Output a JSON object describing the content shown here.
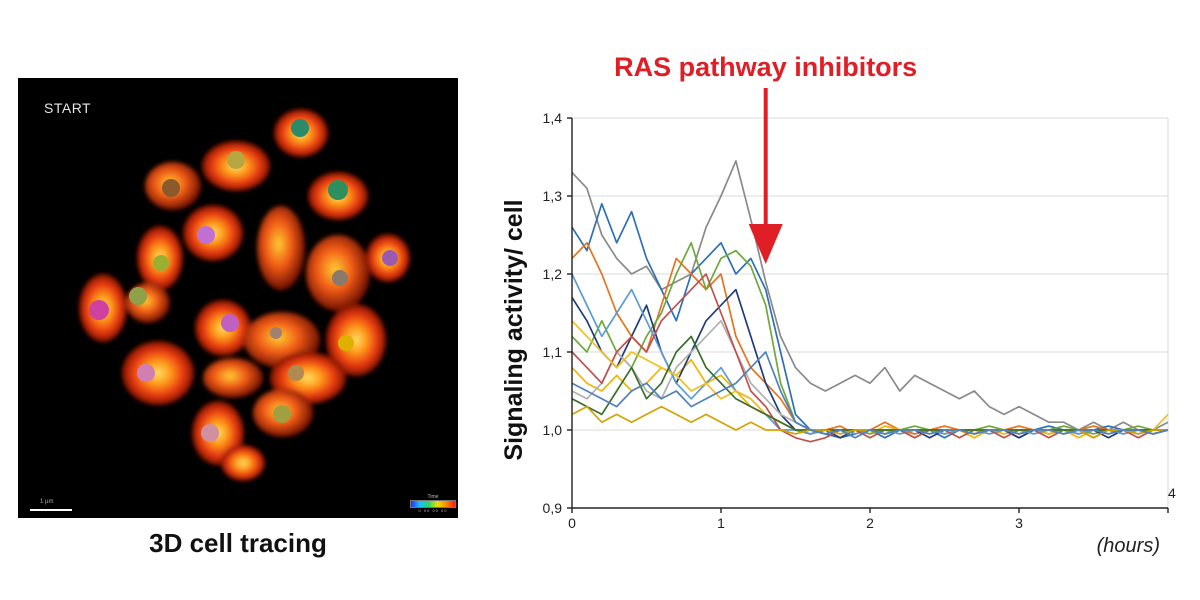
{
  "microscopy": {
    "start_label": "START",
    "caption": "3D cell tracing",
    "scale_label": "1 µm",
    "colorbar_title": "Time",
    "colorbar_ticks": "0 00 00 00"
  },
  "chart_data": {
    "type": "line",
    "title": "",
    "xlabel": "(hours)",
    "ylabel": "Signaling activity/ cell",
    "xlim": [
      0,
      4
    ],
    "ylim": [
      0.9,
      1.4
    ],
    "xticks": [
      0,
      1,
      2,
      3,
      4
    ],
    "xtick_labels": [
      "0",
      "1",
      "2",
      "3",
      "4"
    ],
    "yticks": [
      0.9,
      1.0,
      1.1,
      1.2,
      1.3,
      1.4
    ],
    "ytick_labels": [
      "0,9",
      "1,0",
      "1,1",
      "1,2",
      "1,3",
      "1,4"
    ],
    "grid": "horizontal",
    "annotation": {
      "text": "RAS pathway inhibitors",
      "x": 1.3,
      "color": "#e01e26"
    },
    "x": [
      0,
      0.1,
      0.2,
      0.3,
      0.4,
      0.5,
      0.6,
      0.7,
      0.8,
      0.9,
      1.0,
      1.1,
      1.2,
      1.3,
      1.4,
      1.5,
      1.6,
      1.7,
      1.8,
      1.9,
      2.0,
      2.1,
      2.2,
      2.3,
      2.4,
      2.5,
      2.6,
      2.7,
      2.8,
      2.9,
      3.0,
      3.1,
      3.2,
      3.3,
      3.4,
      3.5,
      3.6,
      3.7,
      3.8,
      3.9,
      4.0
    ],
    "series": [
      {
        "color": "#8a8a8a",
        "values": [
          1.33,
          1.31,
          1.25,
          1.22,
          1.2,
          1.21,
          1.18,
          1.19,
          1.2,
          1.26,
          1.3,
          1.345,
          1.27,
          1.19,
          1.12,
          1.08,
          1.06,
          1.05,
          1.06,
          1.07,
          1.06,
          1.08,
          1.05,
          1.07,
          1.06,
          1.05,
          1.04,
          1.05,
          1.03,
          1.02,
          1.03,
          1.02,
          1.01,
          1.01,
          1.0,
          1.01,
          1.0,
          1.01,
          1.0,
          1.0,
          1.01
        ]
      },
      {
        "color": "#2e6fb5",
        "values": [
          1.26,
          1.23,
          1.29,
          1.24,
          1.28,
          1.22,
          1.18,
          1.14,
          1.2,
          1.22,
          1.24,
          1.2,
          1.22,
          1.18,
          1.1,
          1.02,
          1.0,
          0.995,
          0.99,
          0.995,
          1.0,
          0.99,
          1.0,
          0.995,
          1.0,
          0.99,
          1.0,
          0.995,
          1.0,
          1.0,
          0.99,
          1.0,
          1.005,
          1.0,
          0.995,
          1.0,
          1.005,
          1.0,
          0.995,
          1.0,
          1.0
        ]
      },
      {
        "color": "#e8731e",
        "values": [
          1.22,
          1.24,
          1.2,
          1.15,
          1.12,
          1.1,
          1.16,
          1.22,
          1.2,
          1.18,
          1.2,
          1.12,
          1.08,
          1.06,
          1.04,
          1.01,
          1.0,
          1.0,
          1.005,
          0.995,
          1.0,
          1.01,
          1.0,
          0.995,
          1.0,
          1.005,
          1.0,
          0.995,
          1.0,
          1.0,
          1.005,
          1.0,
          0.995,
          1.0,
          1.0,
          1.005,
          1.0,
          0.995,
          1.0,
          1.0,
          1.0
        ]
      },
      {
        "color": "#f2b400",
        "values": [
          1.08,
          1.06,
          1.05,
          1.07,
          1.05,
          1.06,
          1.08,
          1.07,
          1.09,
          1.06,
          1.07,
          1.05,
          1.03,
          1.02,
          1.01,
          1.0,
          0.995,
          1.0,
          0.99,
          1.0,
          0.995,
          1.005,
          1.0,
          0.99,
          1.0,
          0.995,
          1.0,
          0.99,
          1.0,
          0.995,
          1.0,
          1.0,
          0.995,
          1.0,
          0.99,
          1.0,
          0.995,
          1.0,
          1.0,
          0.995,
          1.0
        ]
      },
      {
        "color": "#6fa83c",
        "values": [
          1.12,
          1.1,
          1.14,
          1.1,
          1.08,
          1.12,
          1.15,
          1.2,
          1.24,
          1.18,
          1.22,
          1.23,
          1.21,
          1.16,
          1.06,
          1.01,
          1.0,
          0.995,
          1.0,
          1.0,
          0.995,
          1.0,
          1.0,
          1.005,
          1.0,
          0.995,
          1.0,
          1.0,
          1.005,
          1.0,
          0.995,
          1.0,
          1.0,
          1.005,
          1.0,
          0.995,
          1.0,
          1.0,
          1.005,
          1.0,
          1.0
        ]
      },
      {
        "color": "#1f3d7a",
        "values": [
          1.17,
          1.14,
          1.1,
          1.08,
          1.12,
          1.16,
          1.1,
          1.06,
          1.1,
          1.14,
          1.16,
          1.18,
          1.12,
          1.06,
          1.02,
          1.0,
          0.995,
          1.0,
          0.99,
          1.0,
          1.0,
          0.995,
          1.0,
          1.0,
          0.99,
          1.0,
          1.0,
          0.995,
          1.0,
          1.0,
          0.99,
          1.0,
          1.0,
          0.995,
          1.0,
          1.0,
          0.99,
          1.0,
          1.0,
          0.995,
          1.0
        ]
      },
      {
        "color": "#b0b0b0",
        "values": [
          1.05,
          1.04,
          1.06,
          1.1,
          1.08,
          1.05,
          1.04,
          1.08,
          1.1,
          1.12,
          1.14,
          1.1,
          1.06,
          1.04,
          1.02,
          1.01,
          1.0,
          1.0,
          1.0,
          1.0,
          1.0,
          1.0,
          1.0,
          1.0,
          1.0,
          1.0,
          1.0,
          1.0,
          1.0,
          1.0,
          1.0,
          1.0,
          1.0,
          1.0,
          1.0,
          1.0,
          1.0,
          1.0,
          1.0,
          1.0,
          1.0
        ]
      },
      {
        "color": "#5b9bd5",
        "values": [
          1.2,
          1.16,
          1.12,
          1.15,
          1.18,
          1.14,
          1.1,
          1.06,
          1.04,
          1.06,
          1.08,
          1.05,
          1.04,
          1.02,
          1.0,
          1.0,
          0.995,
          1.0,
          1.0,
          0.995,
          1.0,
          1.0,
          0.995,
          1.0,
          1.0,
          0.995,
          1.0,
          1.0,
          0.995,
          1.0,
          1.0,
          0.995,
          1.0,
          1.0,
          0.995,
          1.0,
          1.0,
          0.995,
          1.0,
          1.0,
          1.0
        ]
      },
      {
        "color": "#c0504d",
        "values": [
          1.1,
          1.08,
          1.06,
          1.1,
          1.12,
          1.1,
          1.14,
          1.16,
          1.18,
          1.2,
          1.15,
          1.1,
          1.05,
          1.03,
          1.0,
          0.99,
          0.985,
          0.99,
          1.0,
          1.0,
          0.99,
          1.0,
          1.0,
          0.99,
          1.0,
          1.0,
          0.99,
          1.0,
          1.0,
          0.99,
          1.0,
          1.0,
          0.99,
          1.0,
          1.0,
          0.99,
          1.0,
          1.0,
          0.99,
          1.0,
          1.0
        ]
      },
      {
        "color": "#f2c01e",
        "values": [
          1.14,
          1.12,
          1.1,
          1.08,
          1.1,
          1.09,
          1.08,
          1.07,
          1.05,
          1.06,
          1.04,
          1.05,
          1.04,
          1.02,
          1.01,
          1.0,
          1.0,
          1.0,
          1.0,
          1.0,
          1.0,
          1.0,
          1.0,
          1.0,
          1.0,
          1.0,
          1.0,
          1.0,
          1.0,
          1.0,
          1.0,
          1.0,
          1.0,
          1.0,
          1.0,
          1.0,
          1.0,
          1.0,
          1.0,
          1.0,
          1.02
        ]
      },
      {
        "color": "#3a6e2a",
        "values": [
          1.04,
          1.03,
          1.02,
          1.05,
          1.08,
          1.04,
          1.06,
          1.1,
          1.12,
          1.08,
          1.06,
          1.04,
          1.03,
          1.02,
          1.01,
          1.0,
          1.0,
          1.0,
          1.0,
          1.0,
          1.0,
          1.0,
          1.0,
          1.0,
          1.0,
          1.0,
          1.0,
          1.0,
          1.0,
          1.0,
          1.0,
          1.0,
          1.0,
          1.0,
          1.0,
          1.0,
          1.0,
          1.0,
          1.0,
          1.0,
          1.0
        ]
      },
      {
        "color": "#d4a300",
        "values": [
          1.02,
          1.03,
          1.01,
          1.02,
          1.01,
          1.02,
          1.03,
          1.02,
          1.01,
          1.02,
          1.01,
          1.0,
          1.01,
          1.0,
          1.0,
          0.995,
          1.0,
          1.0,
          0.995,
          1.0,
          1.0,
          0.995,
          1.0,
          1.0,
          0.995,
          1.0,
          1.0,
          0.995,
          1.0,
          1.0,
          0.995,
          1.0,
          1.0,
          0.995,
          1.0,
          0.99,
          1.0,
          1.0,
          0.995,
          1.0,
          1.0
        ]
      },
      {
        "color": "#4f81bd",
        "values": [
          1.06,
          1.05,
          1.04,
          1.03,
          1.05,
          1.06,
          1.04,
          1.05,
          1.03,
          1.04,
          1.05,
          1.06,
          1.08,
          1.1,
          1.05,
          1.01,
          1.0,
          0.995,
          1.0,
          0.99,
          1.0,
          0.995,
          1.0,
          1.0,
          0.995,
          1.0,
          1.0,
          0.995,
          1.0,
          1.0,
          0.995,
          1.0,
          1.0,
          0.995,
          1.0,
          1.0,
          0.995,
          1.0,
          1.0,
          0.995,
          1.0
        ]
      }
    ]
  }
}
